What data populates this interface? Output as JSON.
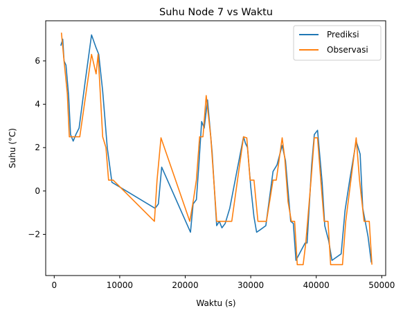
{
  "chart_data": {
    "type": "line",
    "title": "Suhu Node 7 vs Waktu",
    "xlabel": "Waktu (s)",
    "ylabel": "Suhu (°C)",
    "xlim": [
      -1300,
      50600
    ],
    "ylim": [
      -3.9,
      7.85
    ],
    "xticks": [
      0,
      10000,
      20000,
      30000,
      40000,
      50000
    ],
    "xtick_labels": [
      "0",
      "10000",
      "20000",
      "30000",
      "40000",
      "50000"
    ],
    "yticks": [
      -2,
      0,
      2,
      4,
      6
    ],
    "ytick_labels": [
      "−2",
      "0",
      "2",
      "4",
      "6"
    ],
    "grid": false,
    "legend_position": "top-right",
    "series": [
      {
        "name": "Prediksi",
        "color": "#1f77b4",
        "x": [
          1000,
          1300,
          1500,
          1800,
          2200,
          2500,
          2900,
          3300,
          3800,
          4700,
          5700,
          6400,
          6800,
          7400,
          7700,
          8100,
          8800,
          15400,
          15900,
          16400,
          20800,
          21200,
          21700,
          22100,
          22500,
          22900,
          23400,
          24100,
          24800,
          25200,
          25600,
          26100,
          26800,
          28900,
          29200,
          29500,
          30000,
          30500,
          30900,
          31400,
          32300,
          33400,
          34000,
          34800,
          35300,
          36100,
          36500,
          36900,
          37600,
          38300,
          38600,
          39300,
          39700,
          40200,
          40900,
          41300,
          41900,
          42400,
          43800,
          44400,
          45100,
          46100,
          46700,
          47100,
          47900,
          48400
        ],
        "y": [
          6.7,
          7.0,
          6.0,
          5.8,
          4.4,
          2.6,
          2.3,
          2.6,
          2.9,
          5.0,
          7.2,
          6.6,
          6.3,
          4.6,
          3.5,
          2.0,
          0.4,
          -0.8,
          -0.6,
          1.1,
          -1.9,
          -0.6,
          -0.4,
          1.3,
          3.2,
          2.9,
          4.2,
          1.8,
          -1.6,
          -1.4,
          -1.7,
          -1.5,
          -0.8,
          2.5,
          2.2,
          2.0,
          0.2,
          -1.2,
          -1.9,
          -1.8,
          -1.6,
          0.9,
          1.2,
          2.1,
          1.4,
          -1.4,
          -1.5,
          -3.2,
          -2.8,
          -2.4,
          -2.4,
          1.2,
          2.6,
          2.8,
          0.4,
          -1.6,
          -2.3,
          -3.2,
          -2.9,
          -0.9,
          0.5,
          2.3,
          1.7,
          -0.8,
          -2.1,
          -3.3
        ]
      },
      {
        "name": "Observasi",
        "color": "#ff7f0e",
        "x": [
          1100,
          1500,
          2000,
          2300,
          2800,
          3200,
          3900,
          5700,
          6400,
          6700,
          7400,
          7900,
          8300,
          9000,
          15300,
          15700,
          16300,
          20700,
          21200,
          21700,
          22200,
          22700,
          23200,
          23900,
          24800,
          25300,
          26200,
          27100,
          28900,
          29400,
          29900,
          30500,
          31100,
          32400,
          33400,
          33900,
          34800,
          35200,
          35700,
          36200,
          36700,
          37100,
          38000,
          38400,
          39200,
          39700,
          40200,
          40700,
          41200,
          41800,
          42200,
          44000,
          44500,
          46100,
          46600,
          47300,
          48100,
          48500
        ],
        "y": [
          7.3,
          6.0,
          4.5,
          2.5,
          2.5,
          2.5,
          2.5,
          6.3,
          5.4,
          6.3,
          2.5,
          2.0,
          0.5,
          0.5,
          -1.4,
          0.5,
          2.45,
          -1.4,
          -0.5,
          0.5,
          2.5,
          2.5,
          4.4,
          2.5,
          -1.4,
          -1.4,
          -1.4,
          -1.4,
          2.5,
          2.45,
          0.5,
          0.5,
          -1.4,
          -1.4,
          0.5,
          0.5,
          2.45,
          1.5,
          -0.5,
          -1.4,
          -1.4,
          -3.4,
          -3.4,
          -2.4,
          0.5,
          2.45,
          2.45,
          0.5,
          -1.4,
          -1.4,
          -3.4,
          -3.4,
          -1.4,
          2.45,
          0.5,
          -1.4,
          -1.4,
          -3.4
        ]
      }
    ]
  }
}
